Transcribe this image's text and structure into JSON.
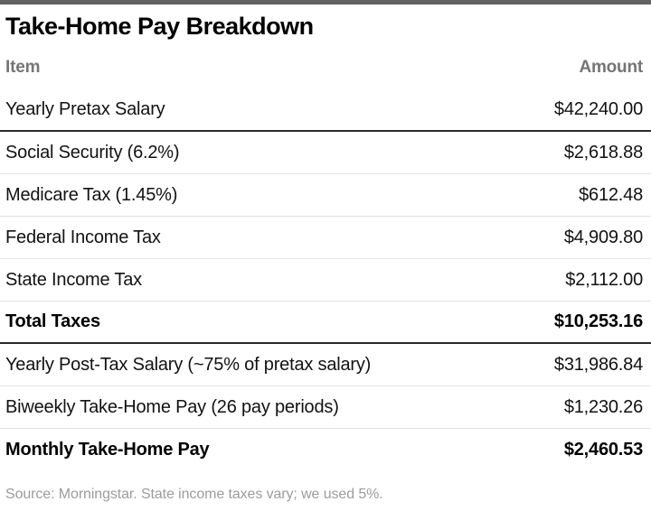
{
  "title": "Take-Home Pay Breakdown",
  "table": {
    "columns": {
      "item": "Item",
      "amount": "Amount"
    },
    "rows": [
      {
        "item": "Yearly Pretax Salary",
        "amount": "$42,240.00"
      },
      {
        "item": "Social Security (6.2%)",
        "amount": "$2,618.88"
      },
      {
        "item": "Medicare Tax (1.45%)",
        "amount": "$612.48"
      },
      {
        "item": "Federal Income Tax",
        "amount": "$4,909.80"
      },
      {
        "item": "State Income Tax",
        "amount": "$2,112.00"
      },
      {
        "item": "Total Taxes",
        "amount": "$10,253.16"
      },
      {
        "item": "Yearly Post-Tax Salary (~75% of pretax salary)",
        "amount": "$31,986.84"
      },
      {
        "item": "Biweekly Take-Home Pay (26 pay periods)",
        "amount": "$1,230.26"
      },
      {
        "item": "Monthly Take-Home Pay",
        "amount": "$2,460.53"
      }
    ]
  },
  "source_note": "Source: Morningstar. State income taxes vary; we used 5%.",
  "colors": {
    "top_bar": "#616161",
    "title_text": "#000000",
    "header_text": "#757575",
    "row_text": "#121212",
    "dark_rule": "#2b2b2b",
    "light_rule": "#e3e3e3",
    "source_text": "#9c9c9c",
    "background": "#ffffff"
  },
  "chart_data": {
    "type": "table",
    "title": "Take-Home Pay Breakdown",
    "columns": [
      "Item",
      "Amount"
    ],
    "rows": [
      [
        "Yearly Pretax Salary",
        42240.0
      ],
      [
        "Social Security (6.2%)",
        2618.88
      ],
      [
        "Medicare Tax (1.45%)",
        612.48
      ],
      [
        "Federal Income Tax",
        4909.8
      ],
      [
        "State Income Tax",
        2112.0
      ],
      [
        "Total Taxes",
        10253.16
      ],
      [
        "Yearly Post-Tax Salary (~75% of pretax salary)",
        31986.84
      ],
      [
        "Biweekly Take-Home Pay (26 pay periods)",
        1230.26
      ],
      [
        "Monthly Take-Home Pay",
        2460.53
      ]
    ],
    "bold_rows": [
      "Total Taxes",
      "Monthly Take-Home Pay"
    ],
    "source": "Source: Morningstar. State income taxes vary; we used 5%.",
    "currency": "USD"
  }
}
